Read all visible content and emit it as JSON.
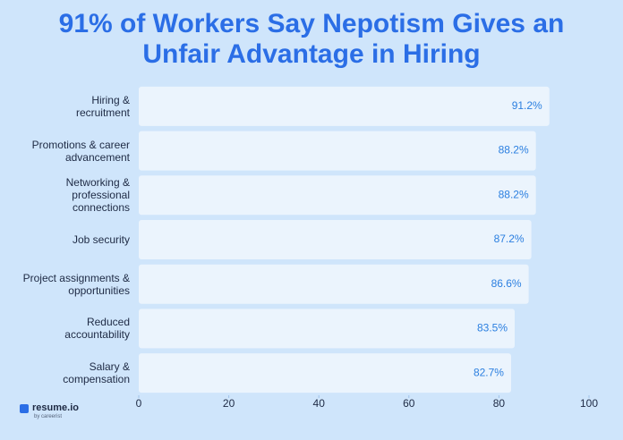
{
  "chart_data": {
    "type": "barh",
    "title": "91% of Workers Say Nepotism Gives an Unfair Advantage in Hiring",
    "categories": [
      "Hiring &\nrecruitment",
      "Promotions & career\nadvancement",
      "Networking &\nprofessional\nconnections",
      "Job security",
      "Project assignments &\nopportunities",
      "Reduced\naccountability",
      "Salary &\ncompensation"
    ],
    "values": [
      91.2,
      88.2,
      88.2,
      87.2,
      86.6,
      83.5,
      82.7
    ],
    "value_labels": [
      "91.2%",
      "88.2%",
      "88.2%",
      "87.2%",
      "86.6%",
      "83.5%",
      "82.7%"
    ],
    "color": "#eef5fd",
    "xlim": [
      0,
      100
    ],
    "xticks": [
      0,
      20,
      40,
      60,
      80,
      100
    ],
    "brand": "resume.io",
    "brand_sub": "by careerist"
  }
}
